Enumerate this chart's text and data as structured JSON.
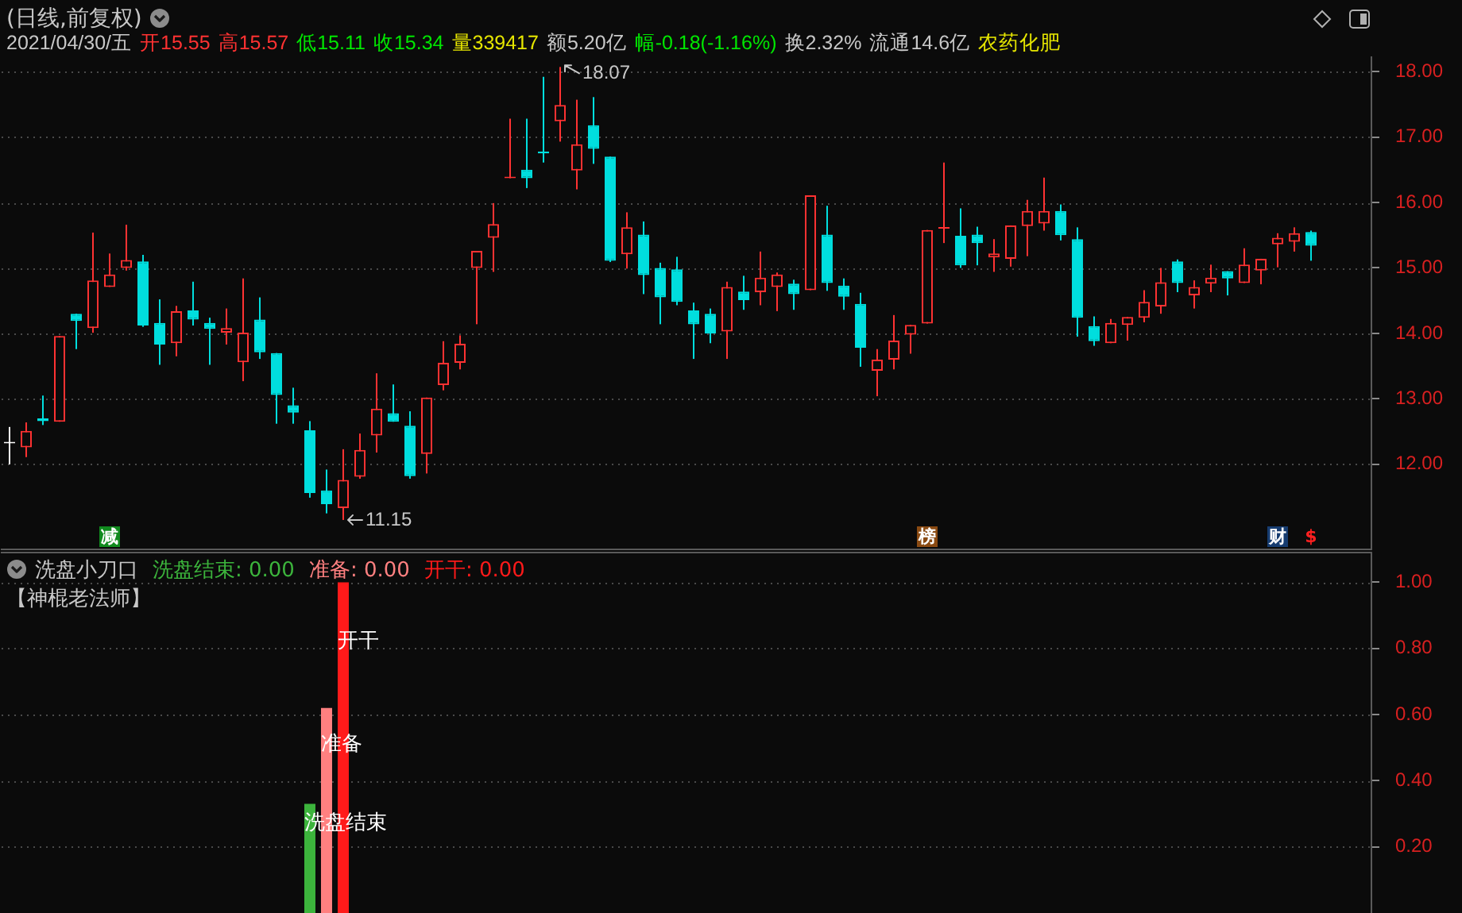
{
  "chart_data": [
    {
      "type": "candlestick",
      "title": "(日线,前复权)",
      "subtitle": "2021/04/30/五 开15.55 高15.57 低15.11 收15.34 量339417 额5.20亿 幅-0.18(-1.16%) 换2.32% 流通14.6亿 农药化肥",
      "categories": [
        null,
        null,
        null,
        null,
        null,
        null,
        null,
        null,
        null,
        null,
        null,
        null,
        null,
        null,
        null,
        null,
        null,
        null,
        null,
        null,
        null,
        null,
        null,
        null,
        null,
        null,
        null,
        null,
        null,
        null,
        null,
        null,
        null,
        null,
        null,
        null,
        null,
        null,
        null,
        null,
        null,
        null,
        null,
        null,
        null,
        null,
        null,
        null,
        null,
        null,
        null,
        null,
        null,
        null,
        null,
        null,
        null,
        null,
        null,
        null,
        null,
        null,
        null,
        null,
        null,
        null,
        null,
        null,
        null,
        null,
        null,
        null,
        null,
        null,
        null,
        null,
        null,
        null,
        null
      ],
      "ohlc": [
        [
          12.32,
          12.57,
          12.0,
          12.32
        ],
        [
          12.26,
          12.64,
          12.11,
          12.51
        ],
        [
          12.7,
          13.05,
          12.6,
          12.66
        ],
        [
          12.65,
          13.96,
          12.65,
          13.96
        ],
        [
          14.3,
          14.3,
          13.76,
          14.19
        ],
        [
          14.08,
          15.54,
          14.01,
          14.81
        ],
        [
          14.71,
          15.22,
          14.71,
          14.9
        ],
        [
          15.0,
          15.66,
          14.96,
          15.12
        ],
        [
          15.1,
          15.2,
          14.1,
          14.12
        ],
        [
          14.16,
          14.52,
          13.52,
          13.83
        ],
        [
          13.85,
          14.42,
          13.65,
          14.34
        ],
        [
          14.35,
          14.79,
          14.12,
          14.21
        ],
        [
          14.16,
          14.24,
          13.52,
          14.07
        ],
        [
          14.01,
          14.38,
          13.83,
          14.08
        ],
        [
          13.56,
          14.84,
          13.27,
          14.01
        ],
        [
          14.21,
          14.55,
          13.61,
          13.71
        ],
        [
          13.7,
          13.7,
          12.62,
          13.06
        ],
        [
          12.9,
          13.17,
          12.62,
          12.79
        ],
        [
          12.52,
          12.66,
          11.49,
          11.56
        ],
        [
          11.6,
          11.92,
          11.25,
          11.39
        ],
        [
          11.33,
          12.23,
          11.15,
          11.76
        ],
        [
          11.81,
          12.47,
          11.78,
          12.22
        ],
        [
          12.44,
          13.39,
          12.18,
          12.85
        ],
        [
          12.78,
          13.22,
          12.65,
          12.65
        ],
        [
          12.59,
          12.81,
          11.78,
          11.82
        ],
        [
          12.16,
          13.02,
          11.86,
          13.02
        ],
        [
          13.21,
          13.88,
          13.13,
          13.55
        ],
        [
          13.55,
          13.97,
          13.45,
          13.84
        ],
        [
          15.0,
          15.26,
          14.14,
          15.26
        ],
        [
          15.46,
          15.99,
          14.94,
          15.67
        ],
        [
          16.37,
          17.28,
          16.37,
          16.38
        ],
        [
          16.5,
          17.28,
          16.22,
          16.37
        ],
        [
          16.78,
          17.92,
          16.61,
          16.75
        ],
        [
          17.24,
          18.07,
          16.93,
          17.49
        ],
        [
          16.49,
          17.57,
          16.2,
          16.89
        ],
        [
          17.18,
          17.61,
          16.59,
          16.82
        ],
        [
          16.7,
          16.7,
          15.09,
          15.11
        ],
        [
          15.21,
          15.85,
          14.99,
          15.62
        ],
        [
          15.51,
          15.71,
          14.6,
          14.89
        ],
        [
          15.0,
          15.08,
          14.14,
          14.55
        ],
        [
          14.98,
          15.17,
          14.43,
          14.48
        ],
        [
          14.35,
          14.47,
          13.61,
          14.14
        ],
        [
          14.3,
          14.38,
          13.85,
          14.0
        ],
        [
          14.03,
          14.79,
          13.61,
          14.71
        ],
        [
          14.64,
          14.88,
          14.36,
          14.51
        ],
        [
          14.63,
          15.25,
          14.43,
          14.85
        ],
        [
          14.71,
          14.93,
          14.34,
          14.9
        ],
        [
          14.76,
          14.82,
          14.36,
          14.6
        ],
        [
          14.66,
          16.11,
          14.66,
          16.11
        ],
        [
          15.51,
          15.95,
          14.65,
          14.77
        ],
        [
          14.73,
          14.84,
          14.36,
          14.56
        ],
        [
          14.45,
          14.62,
          13.49,
          13.78
        ],
        [
          13.43,
          13.76,
          13.04,
          13.6
        ],
        [
          13.6,
          14.28,
          13.45,
          13.89
        ],
        [
          13.98,
          14.13,
          13.69,
          14.13
        ],
        [
          14.15,
          15.58,
          14.15,
          15.58
        ],
        [
          15.6,
          16.61,
          15.38,
          15.62
        ],
        [
          15.49,
          15.91,
          15.0,
          15.04
        ],
        [
          15.51,
          15.63,
          15.04,
          15.38
        ],
        [
          15.16,
          15.44,
          14.94,
          15.22
        ],
        [
          15.14,
          15.65,
          15.02,
          15.65
        ],
        [
          15.64,
          16.04,
          15.18,
          15.87
        ],
        [
          15.68,
          16.38,
          15.57,
          15.87
        ],
        [
          15.87,
          15.97,
          15.42,
          15.5
        ],
        [
          15.44,
          15.62,
          13.95,
          14.24
        ],
        [
          14.11,
          14.26,
          13.81,
          13.88
        ],
        [
          13.85,
          14.22,
          13.85,
          14.16
        ],
        [
          14.13,
          14.25,
          13.89,
          14.25
        ],
        [
          14.24,
          14.66,
          14.17,
          14.48
        ],
        [
          14.41,
          15.0,
          14.3,
          14.78
        ],
        [
          15.1,
          15.13,
          14.63,
          14.77
        ],
        [
          14.58,
          14.81,
          14.38,
          14.71
        ],
        [
          14.76,
          15.05,
          14.63,
          14.85
        ],
        [
          14.95,
          14.95,
          14.58,
          14.84
        ],
        [
          14.77,
          15.3,
          14.77,
          15.05
        ],
        [
          14.96,
          15.14,
          14.75,
          15.14
        ],
        [
          15.36,
          15.53,
          15.01,
          15.46
        ],
        [
          15.4,
          15.62,
          15.25,
          15.53
        ],
        [
          15.55,
          15.57,
          15.11,
          15.34
        ]
      ],
      "colors": [
        "#ffffff",
        "#ff3232",
        "#00dede",
        "#ff3232",
        "#00dede",
        "#ff3232",
        "#ff3232",
        "#ff3232",
        "#00dede",
        "#00dede",
        "#ff3232",
        "#00dede",
        "#00dede",
        "#ff3232",
        "#ff3232",
        "#00dede",
        "#00dede",
        "#00dede",
        "#00dede",
        "#00dede",
        "#ff3232",
        "#ff3232",
        "#ff3232",
        "#00dede",
        "#00dede",
        "#ff3232",
        "#ff3232",
        "#ff3232",
        "#ff3232",
        "#ff3232",
        "#ff3232",
        "#00dede",
        "#00dede",
        "#ff3232",
        "#ff3232",
        "#00dede",
        "#00dede",
        "#ff3232",
        "#00dede",
        "#00dede",
        "#00dede",
        "#00dede",
        "#00dede",
        "#ff3232",
        "#00dede",
        "#ff3232",
        "#ff3232",
        "#00dede",
        "#ff3232",
        "#00dede",
        "#00dede",
        "#00dede",
        "#ff3232",
        "#ff3232",
        "#ff3232",
        "#ff3232",
        "#ff3232",
        "#00dede",
        "#00dede",
        "#ff3232",
        "#ff3232",
        "#ff3232",
        "#ff3232",
        "#00dede",
        "#00dede",
        "#00dede",
        "#ff3232",
        "#ff3232",
        "#ff3232",
        "#ff3232",
        "#00dede",
        "#ff3232",
        "#ff3232",
        "#00dede",
        "#ff3232",
        "#ff3232",
        "#ff3232",
        "#ff3232",
        "#00dede"
      ],
      "ylim": [
        10.7,
        18.22
      ],
      "yticks": [
        {
          "value": 12,
          "label": "12.00"
        },
        {
          "value": 13,
          "label": "13.00"
        },
        {
          "value": 14,
          "label": "14.00"
        },
        {
          "value": 15,
          "label": "15.00"
        },
        {
          "value": 16,
          "label": "16.00"
        },
        {
          "value": 17,
          "label": "17.00"
        },
        {
          "value": 18,
          "label": "18.00"
        }
      ],
      "grid": "y",
      "tick_labels": "y",
      "annotations": [
        "18.07",
        "11.15",
        "减",
        "榜",
        "财",
        "$"
      ]
    },
    {
      "type": "bar",
      "title": "洗盘小刀口",
      "subtitle": "【神棍老法师】",
      "categories": [
        null,
        null,
        null,
        null,
        null,
        null,
        null,
        null,
        null,
        null,
        null,
        null,
        null,
        null,
        null,
        null,
        null,
        null,
        null,
        null,
        null,
        null,
        null,
        null,
        null,
        null,
        null,
        null,
        null,
        null,
        null,
        null,
        null,
        null,
        null,
        null,
        null,
        null,
        null,
        null,
        null,
        null,
        null,
        null,
        null,
        null,
        null,
        null,
        null,
        null,
        null,
        null,
        null,
        null,
        null,
        null,
        null,
        null,
        null,
        null,
        null,
        null,
        null,
        null,
        null,
        null,
        null,
        null,
        null,
        null,
        null,
        null,
        null,
        null,
        null,
        null,
        null,
        null,
        null
      ],
      "series": [
        {
          "name": "洗盘结束",
          "color": "#3cb43c",
          "values": [
            0,
            0,
            0,
            0,
            0,
            0,
            0,
            0,
            0,
            0,
            0,
            0,
            0,
            0,
            0,
            0,
            0,
            0,
            0.33,
            0,
            0,
            0,
            0,
            0,
            0,
            0,
            0,
            0,
            0,
            0,
            0,
            0,
            0,
            0,
            0,
            0,
            0,
            0,
            0,
            0,
            0,
            0,
            0,
            0,
            0,
            0,
            0,
            0,
            0,
            0,
            0,
            0,
            0,
            0,
            0,
            0,
            0,
            0,
            0,
            0,
            0,
            0,
            0,
            0,
            0,
            0,
            0,
            0,
            0,
            0,
            0,
            0,
            0,
            0,
            0,
            0,
            0,
            0,
            0
          ]
        },
        {
          "name": "准备",
          "color": "#ff8080",
          "values": [
            0,
            0,
            0,
            0,
            0,
            0,
            0,
            0,
            0,
            0,
            0,
            0,
            0,
            0,
            0,
            0,
            0,
            0,
            0,
            0.62,
            0,
            0,
            0,
            0,
            0,
            0,
            0,
            0,
            0,
            0,
            0,
            0,
            0,
            0,
            0,
            0,
            0,
            0,
            0,
            0,
            0,
            0,
            0,
            0,
            0,
            0,
            0,
            0,
            0,
            0,
            0,
            0,
            0,
            0,
            0,
            0,
            0,
            0,
            0,
            0,
            0,
            0,
            0,
            0,
            0,
            0,
            0,
            0,
            0,
            0,
            0,
            0,
            0,
            0,
            0,
            0,
            0,
            0,
            0
          ]
        },
        {
          "name": "开干",
          "color": "#ff1a1a",
          "values": [
            0,
            0,
            0,
            0,
            0,
            0,
            0,
            0,
            0,
            0,
            0,
            0,
            0,
            0,
            0,
            0,
            0,
            0,
            0,
            0,
            1,
            0,
            0,
            0,
            0,
            0,
            0,
            0,
            0,
            0,
            0,
            0,
            0,
            0,
            0,
            0,
            0,
            0,
            0,
            0,
            0,
            0,
            0,
            0,
            0,
            0,
            0,
            0,
            0,
            0,
            0,
            0,
            0,
            0,
            0,
            0,
            0,
            0,
            0,
            0,
            0,
            0,
            0,
            0,
            0,
            0,
            0,
            0,
            0,
            0,
            0,
            0,
            0,
            0,
            0,
            0,
            0,
            0,
            0
          ]
        }
      ],
      "ylim": [
        0,
        1.09
      ],
      "yticks": [
        {
          "value": 0.2,
          "label": "0.20"
        },
        {
          "value": 0.4,
          "label": "0.40"
        },
        {
          "value": 0.6,
          "label": "0.60"
        },
        {
          "value": 0.8,
          "label": "0.80"
        },
        {
          "value": 1,
          "label": "1.00"
        }
      ],
      "grid": "y",
      "tick_labels": "y",
      "annotations": [
        "洗盘结束: 0.00",
        "准备: 0.00",
        "开干: 0.00"
      ]
    }
  ]
}
